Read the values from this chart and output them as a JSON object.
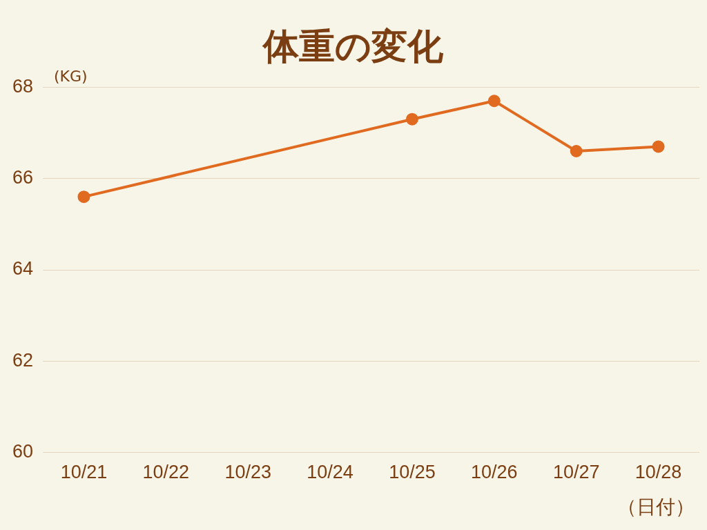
{
  "chart_data": {
    "type": "line",
    "title": "体重の変化",
    "ylabel": "(KG)",
    "xlabel": "（日付）",
    "categories": [
      "10/21",
      "10/22",
      "10/23",
      "10/24",
      "10/25",
      "10/26",
      "10/27",
      "10/28"
    ],
    "series": [
      {
        "color": "#e06a20",
        "values": [
          65.6,
          null,
          null,
          null,
          67.3,
          67.7,
          66.6,
          66.7
        ]
      }
    ],
    "ylim": [
      60,
      68
    ],
    "yticks": [
      60,
      62,
      64,
      66,
      68
    ],
    "grid": "y",
    "legend": false,
    "marker": "circle",
    "line_style": "solid"
  }
}
